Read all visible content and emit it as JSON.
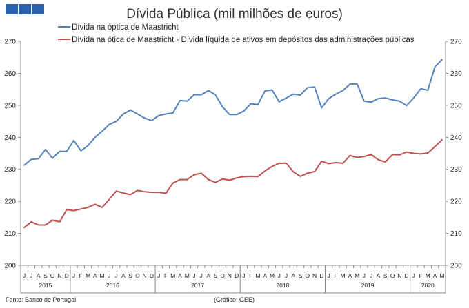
{
  "header": {
    "brand_color": "#2a63ac"
  },
  "chart_data": {
    "type": "line",
    "title": "Dívida Pública (mil milhões de euros)",
    "ylim": [
      200,
      270
    ],
    "yticks": [
      200,
      210,
      220,
      230,
      240,
      250,
      260,
      270
    ],
    "y2ticks": [
      200,
      210,
      220,
      230,
      240,
      250,
      260,
      270
    ],
    "grid": false,
    "legend_position": "top",
    "month_labels": [
      "J",
      "J",
      "A",
      "S",
      "O",
      "N",
      "D",
      "J",
      "F",
      "M",
      "A",
      "M",
      "J",
      "J",
      "A",
      "S",
      "O",
      "N",
      "D",
      "J",
      "F",
      "M",
      "A",
      "M",
      "J",
      "J",
      "A",
      "S",
      "O",
      "N",
      "D",
      "J",
      "F",
      "M",
      "A",
      "M",
      "J",
      "J",
      "A",
      "S",
      "O",
      "N",
      "D",
      "J",
      "F",
      "M",
      "A",
      "M",
      "J",
      "J",
      "A",
      "S",
      "O",
      "N",
      "D",
      "J",
      "F",
      "M",
      "A",
      "M"
    ],
    "years": [
      {
        "label": "2015",
        "start": 0,
        "end": 7
      },
      {
        "label": "2016",
        "start": 7,
        "end": 19
      },
      {
        "label": "2017",
        "start": 19,
        "end": 31
      },
      {
        "label": "2018",
        "start": 31,
        "end": 43
      },
      {
        "label": "2019",
        "start": 43,
        "end": 55
      },
      {
        "label": "2020",
        "start": 55,
        "end": 60
      }
    ],
    "series": [
      {
        "name": "Dívida na óptica de Maastricht",
        "color": "#4f81bd",
        "values": [
          231.3,
          233.1,
          233.3,
          236.2,
          233.5,
          235.6,
          235.6,
          239.0,
          235.8,
          237.4,
          240.0,
          241.9,
          244.0,
          245.0,
          247.3,
          248.5,
          247.3,
          246.0,
          245.2,
          246.8,
          247.3,
          247.6,
          251.5,
          251.3,
          253.3,
          253.3,
          254.6,
          253.3,
          249.5,
          247.1,
          247.1,
          248.2,
          250.5,
          250.2,
          254.5,
          254.8,
          251.1,
          252.3,
          253.5,
          253.2,
          255.5,
          255.7,
          249.2,
          252.1,
          253.5,
          254.6,
          256.6,
          256.7,
          251.3,
          251.0,
          252.1,
          252.3,
          251.7,
          251.3,
          249.9,
          252.3,
          255.2,
          254.7,
          262.0,
          264.3
        ]
      },
      {
        "name": "Dívida na ótica de Maastricht - Dívida líquida de ativos em depósitos das administrações públicas",
        "color": "#c0504d",
        "values": [
          211.8,
          213.6,
          212.6,
          212.6,
          214.1,
          213.6,
          217.4,
          217.1,
          217.6,
          218.1,
          219.1,
          218.1,
          220.6,
          223.2,
          222.6,
          222.1,
          223.4,
          223.0,
          222.8,
          222.8,
          222.5,
          225.7,
          226.8,
          226.8,
          228.3,
          228.8,
          226.8,
          225.9,
          227.0,
          226.6,
          227.3,
          227.7,
          227.8,
          227.7,
          229.5,
          230.9,
          231.9,
          231.9,
          229.2,
          227.8,
          228.8,
          229.3,
          232.5,
          231.8,
          232.1,
          231.9,
          234.3,
          233.7,
          234.0,
          234.6,
          233.0,
          232.3,
          234.6,
          234.5,
          235.4,
          235.0,
          234.8,
          235.1,
          237.1,
          239.2
        ]
      }
    ],
    "source": "Fonte: Banco de Portugal",
    "credit": "(Gráfico: GEE)"
  }
}
